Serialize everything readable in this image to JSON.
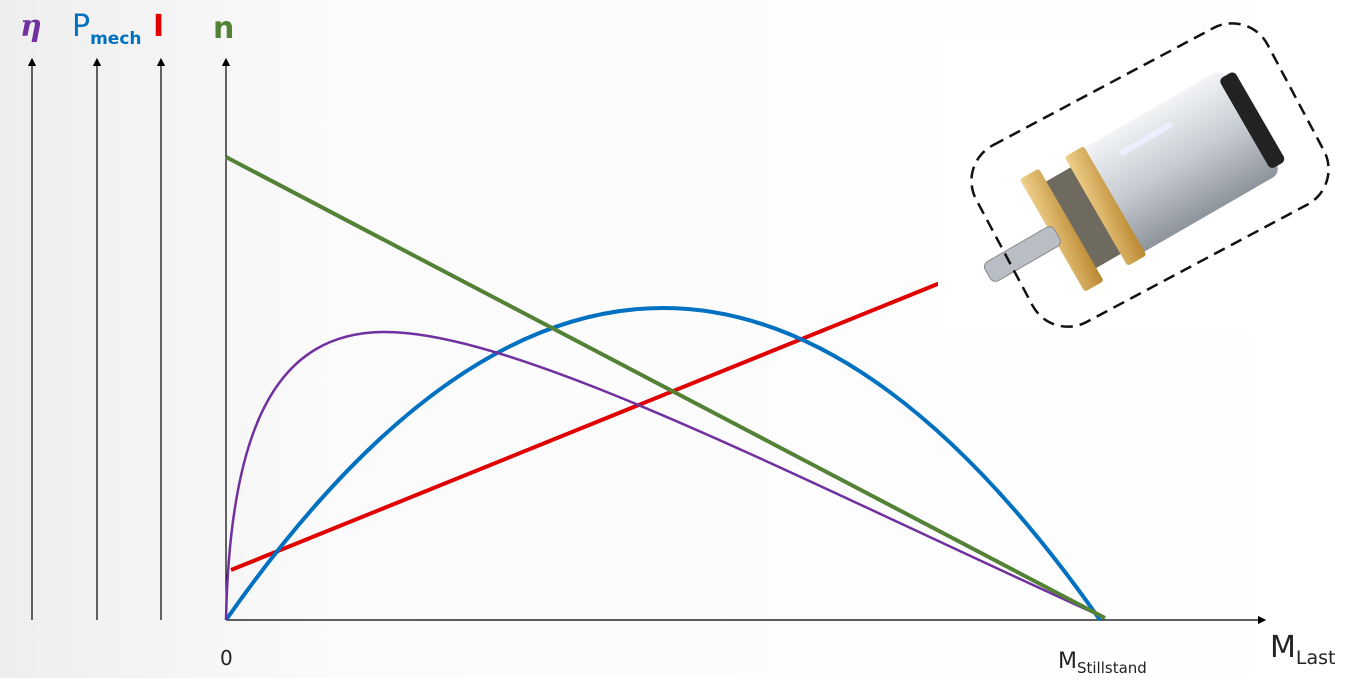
{
  "axes_labels": [
    {
      "symbol": "η"
    },
    {
      "symbol": "P",
      "subscript": "mech"
    },
    {
      "symbol": "I"
    },
    {
      "symbol": "n"
    }
  ],
  "x_axis": {
    "origin": "0",
    "stall": {
      "symbol": "M",
      "subscript": "Stillstand"
    },
    "label": {
      "symbol": "M",
      "subscript": "Last"
    }
  }
}
